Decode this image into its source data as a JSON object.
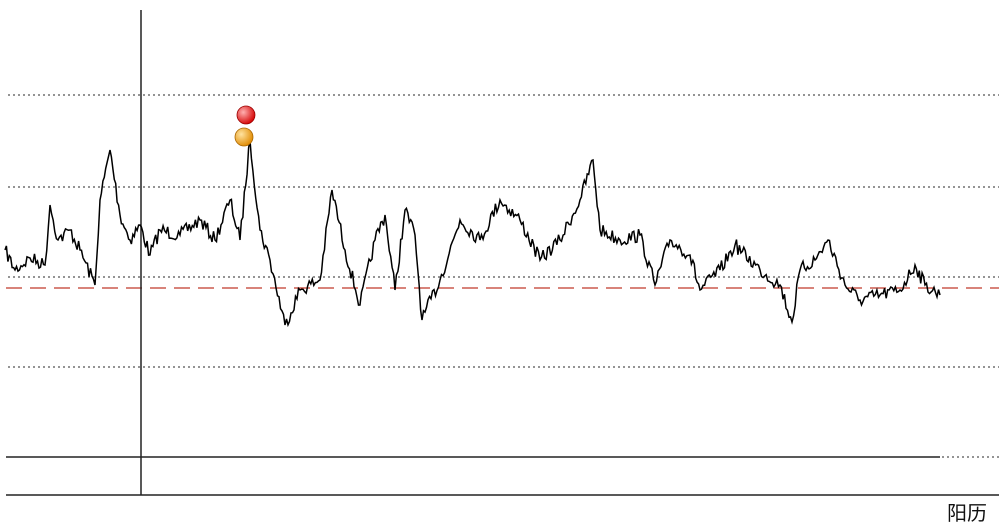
{
  "footer": {
    "label": "阳历"
  }
}
